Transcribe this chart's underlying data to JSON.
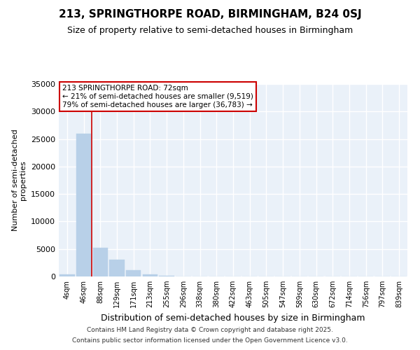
{
  "title": "213, SPRINGTHORPE ROAD, BIRMINGHAM, B24 0SJ",
  "subtitle": "Size of property relative to semi-detached houses in Birmingham",
  "xlabel": "Distribution of semi-detached houses by size in Birmingham",
  "ylabel": "Number of semi-detached\nproperties",
  "categories": [
    "4sqm",
    "46sqm",
    "88sqm",
    "129sqm",
    "171sqm",
    "213sqm",
    "255sqm",
    "296sqm",
    "338sqm",
    "380sqm",
    "422sqm",
    "463sqm",
    "505sqm",
    "547sqm",
    "589sqm",
    "630sqm",
    "672sqm",
    "714sqm",
    "756sqm",
    "797sqm",
    "839sqm"
  ],
  "values": [
    400,
    26000,
    5200,
    3000,
    1200,
    400,
    100,
    20,
    0,
    0,
    0,
    0,
    0,
    0,
    0,
    0,
    0,
    0,
    0,
    0,
    0
  ],
  "bar_color": "#b8d0e8",
  "bar_edge_color": "#b8d0e8",
  "vline_color": "#cc0000",
  "vline_x_pos": 1.5,
  "annotation_text": "213 SPRINGTHORPE ROAD: 72sqm\n← 21% of semi-detached houses are smaller (9,519)\n79% of semi-detached houses are larger (36,783) →",
  "annotation_box_facecolor": "#ffffff",
  "annotation_box_edgecolor": "#cc0000",
  "ylim": [
    0,
    35000
  ],
  "yticks": [
    0,
    5000,
    10000,
    15000,
    20000,
    25000,
    30000,
    35000
  ],
  "ytick_labels": [
    "0",
    "5000",
    "10000",
    "15000",
    "20000",
    "25000",
    "30000",
    "35000"
  ],
  "bg_color": "#ffffff",
  "plot_bg_color": "#eaf1f9",
  "grid_color": "#ffffff",
  "footer_line1": "Contains HM Land Registry data © Crown copyright and database right 2025.",
  "footer_line2": "Contains public sector information licensed under the Open Government Licence v3.0."
}
